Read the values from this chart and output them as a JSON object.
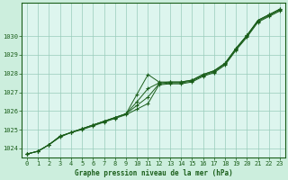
{
  "title": "Graphe pression niveau de la mer (hPa)",
  "bg_color": "#cceedd",
  "plot_bg_color": "#ddf5ee",
  "line_color": "#1a5e1a",
  "marker_color": "#1a5e1a",
  "grid_color": "#99ccbb",
  "text_color": "#1a5e1a",
  "xlim": [
    -0.5,
    23.5
  ],
  "ylim": [
    1023.5,
    1031.8
  ],
  "yticks": [
    1024,
    1025,
    1026,
    1027,
    1028,
    1029,
    1030
  ],
  "xticks": [
    0,
    1,
    2,
    3,
    4,
    5,
    6,
    7,
    8,
    9,
    10,
    11,
    12,
    13,
    14,
    15,
    16,
    17,
    18,
    19,
    20,
    21,
    22,
    23
  ],
  "series": [
    [
      1023.7,
      1023.85,
      1024.2,
      1024.65,
      1024.85,
      1025.05,
      1025.25,
      1025.45,
      1025.65,
      1025.85,
      1026.9,
      1027.95,
      1027.55,
      1027.55,
      1027.55,
      1027.65,
      1027.95,
      1028.15,
      1028.55,
      1029.35,
      1030.05,
      1030.85,
      1031.15,
      1031.45
    ],
    [
      1023.7,
      1023.85,
      1024.2,
      1024.65,
      1024.85,
      1025.05,
      1025.25,
      1025.45,
      1025.65,
      1025.85,
      1026.5,
      1027.2,
      1027.5,
      1027.55,
      1027.55,
      1027.65,
      1027.95,
      1028.15,
      1028.55,
      1029.35,
      1030.05,
      1030.85,
      1031.15,
      1031.45
    ],
    [
      1023.7,
      1023.85,
      1024.2,
      1024.65,
      1024.85,
      1025.05,
      1025.25,
      1025.45,
      1025.65,
      1025.85,
      1026.3,
      1026.75,
      1027.45,
      1027.5,
      1027.5,
      1027.6,
      1027.9,
      1028.1,
      1028.5,
      1029.3,
      1030.0,
      1030.8,
      1031.1,
      1031.4
    ],
    [
      1023.7,
      1023.85,
      1024.2,
      1024.6,
      1024.85,
      1025.0,
      1025.2,
      1025.4,
      1025.6,
      1025.8,
      1026.1,
      1026.4,
      1027.4,
      1027.45,
      1027.45,
      1027.55,
      1027.85,
      1028.05,
      1028.45,
      1029.25,
      1029.95,
      1030.75,
      1031.05,
      1031.35
    ]
  ]
}
